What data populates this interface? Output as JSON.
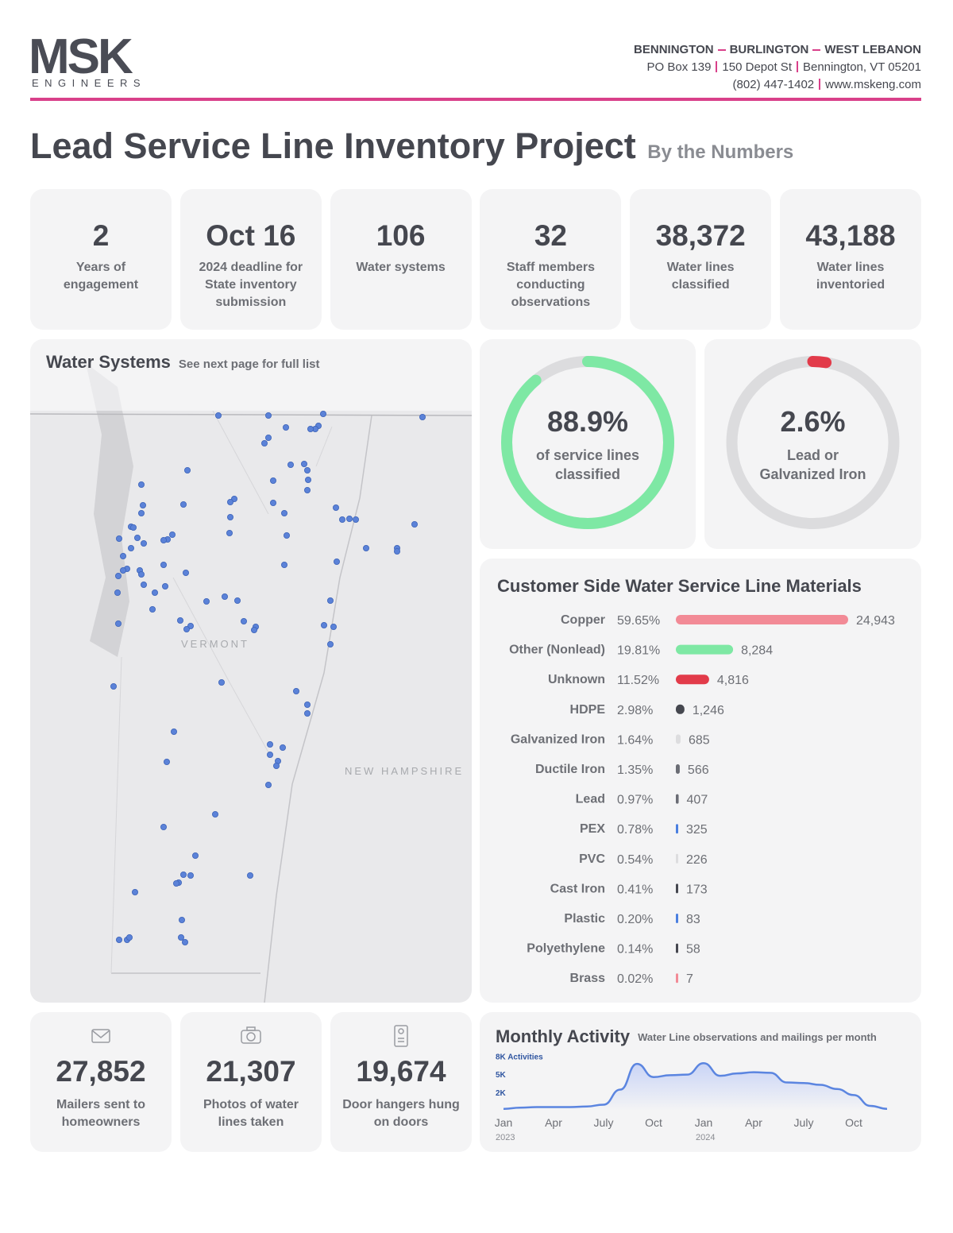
{
  "header": {
    "logo": "MSK",
    "logo_sub": "ENGINEERS",
    "offices": [
      "BENNINGTON",
      "BURLINGTON",
      "WEST LEBANON"
    ],
    "address": [
      "PO Box 139",
      "150 Depot St",
      "Bennington, VT 05201"
    ],
    "contact": [
      "(802) 447-1402",
      "www.mskeng.com"
    ]
  },
  "title": "Lead Service Line Inventory Project",
  "subtitle": "By the Numbers",
  "stats": [
    {
      "value": "2",
      "label": "Years of engagement"
    },
    {
      "value": "Oct 16",
      "label": "2024 deadline for State inventory submission"
    },
    {
      "value": "106",
      "label": "Water systems"
    },
    {
      "value": "32",
      "label": "Staff members conducting observations"
    },
    {
      "value": "38,372",
      "label": "Water lines classified"
    },
    {
      "value": "43,188",
      "label": "Water lines inventoried"
    }
  ],
  "map": {
    "title": "Water Systems",
    "note": "See next page for full list",
    "labels": [
      "VERMONT",
      "NEW HAMPSHIRE"
    ]
  },
  "chart_data": [
    {
      "type": "donut",
      "values": [
        88.9
      ],
      "value_labels": [
        "88.9%"
      ],
      "caption": "of service lines classified",
      "color": "#7ee8a4"
    },
    {
      "type": "donut",
      "values": [
        2.6
      ],
      "value_labels": [
        "2.6%"
      ],
      "caption": "Lead or Galvanized Iron",
      "color": "#e23b4a"
    },
    {
      "type": "bar",
      "title": "Customer Side Water Service Line Materials",
      "categories": [
        "Copper",
        "Other (Nonlead)",
        "Unknown",
        "HDPE",
        "Galvanized Iron",
        "Ductile Iron",
        "Lead",
        "PEX",
        "PVC",
        "Cast Iron",
        "Plastic",
        "Polyethylene",
        "Brass"
      ],
      "values": [
        24943,
        8284,
        4816,
        1246,
        685,
        566,
        407,
        325,
        226,
        173,
        83,
        58,
        7
      ],
      "value_labels": [
        "24,943",
        "8,284",
        "4,816",
        "1,246",
        "685",
        "566",
        "407",
        "325",
        "226",
        "173",
        "83",
        "58",
        "7"
      ],
      "percent_labels": [
        "59.65%",
        "19.81%",
        "11.52%",
        "2.98%",
        "1.64%",
        "1.35%",
        "0.97%",
        "0.78%",
        "0.54%",
        "0.41%",
        "0.20%",
        "0.14%",
        "0.02%"
      ],
      "colors": [
        "#f28a96",
        "#7ee8a4",
        "#e23b4a",
        "#45474f",
        "#dddddf",
        "#6a6c74",
        "#6a6c74",
        "#4a7fe0",
        "#dddddf",
        "#45474f",
        "#4a7fe0",
        "#45474f",
        "#f28a96"
      ]
    },
    {
      "type": "line",
      "title": "Monthly Activity",
      "subtitle": "Water Line observations and mailings per month",
      "categories": [
        "Jan",
        null,
        null,
        "Apr",
        null,
        null,
        "July",
        null,
        null,
        "Oct",
        null,
        null,
        "Jan",
        null,
        null,
        "Apr",
        null,
        null,
        "July",
        null,
        null,
        "Oct",
        null,
        null
      ],
      "years": [
        "2023",
        null,
        null,
        null,
        null,
        null,
        null,
        null,
        null,
        null,
        null,
        null,
        "2024",
        null,
        null,
        null,
        null,
        null,
        null,
        null,
        null,
        null,
        null,
        null
      ],
      "values": [
        300,
        500,
        600,
        600,
        600,
        700,
        1000,
        3500,
        7800,
        5600,
        5900,
        6000,
        7900,
        5800,
        6200,
        6400,
        6300,
        4700,
        4600,
        4300,
        3600,
        2600,
        800,
        300
      ],
      "ylim": [
        0,
        9000
      ],
      "yticks": [
        {
          "value": 8000,
          "label": "8K Activities"
        },
        {
          "value": 5000,
          "label": "5K"
        },
        {
          "value": 2000,
          "label": "2K"
        }
      ],
      "color": "#5b85e0",
      "grid": false
    }
  ],
  "bottom_stats": [
    {
      "value": "27,852",
      "label": "Mailers sent to homeowners"
    },
    {
      "value": "21,307",
      "label": "Photos of water lines taken"
    },
    {
      "value": "19,674",
      "label": "Door hangers hung on doors"
    }
  ]
}
